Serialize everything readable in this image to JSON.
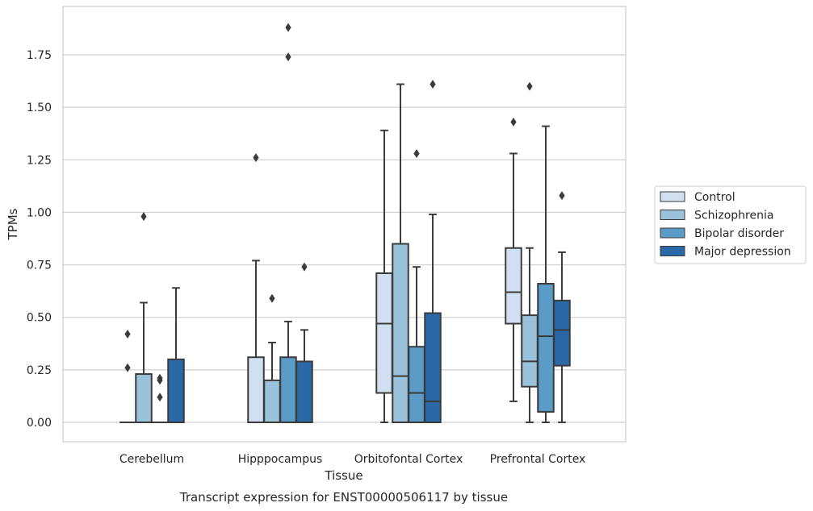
{
  "chart_data": {
    "type": "box",
    "xlabel": "Tissue",
    "ylabel": "TPMs",
    "caption": "Transcript expression for ENST00000506117 by tissue",
    "ylim": [
      -0.09,
      1.97
    ],
    "yticks": [
      "0.00",
      "0.25",
      "0.50",
      "0.75",
      "1.00",
      "1.25",
      "1.50",
      "1.75"
    ],
    "grid": "horizontal",
    "legend_position": "right",
    "categories": [
      "Cerebellum",
      "Hipppocampus",
      "Orbitofontal Cortex",
      "Prefrontal Cortex"
    ],
    "series": [
      {
        "name": "Control",
        "color": "#d0e0f0",
        "boxes": [
          {
            "q1": 0.0,
            "median": 0.0,
            "q3": 0.0,
            "whisker_low": 0.0,
            "whisker_high": 0.0,
            "outliers": [
              0.42,
              0.26
            ]
          },
          {
            "q1": 0.0,
            "median": 0.0,
            "q3": 0.31,
            "whisker_low": 0.0,
            "whisker_high": 0.77,
            "outliers": [
              1.26
            ]
          },
          {
            "q1": 0.14,
            "median": 0.47,
            "q3": 0.71,
            "whisker_low": 0.0,
            "whisker_high": 1.39,
            "outliers": []
          },
          {
            "q1": 0.47,
            "median": 0.62,
            "q3": 0.83,
            "whisker_low": 0.1,
            "whisker_high": 1.28,
            "outliers": [
              1.43
            ]
          }
        ]
      },
      {
        "name": "Schizophrenia",
        "color": "#9ac3db",
        "boxes": [
          {
            "q1": 0.0,
            "median": 0.0,
            "q3": 0.23,
            "whisker_low": 0.0,
            "whisker_high": 0.57,
            "outliers": [
              0.98
            ]
          },
          {
            "q1": 0.0,
            "median": 0.0,
            "q3": 0.2,
            "whisker_low": 0.0,
            "whisker_high": 0.38,
            "outliers": [
              0.59
            ]
          },
          {
            "q1": 0.0,
            "median": 0.22,
            "q3": 0.85,
            "whisker_low": 0.0,
            "whisker_high": 1.61,
            "outliers": []
          },
          {
            "q1": 0.17,
            "median": 0.29,
            "q3": 0.51,
            "whisker_low": 0.0,
            "whisker_high": 0.83,
            "outliers": [
              1.6
            ]
          }
        ]
      },
      {
        "name": "Bipolar disorder",
        "color": "#5b9bc8",
        "boxes": [
          {
            "q1": 0.0,
            "median": 0.0,
            "q3": 0.0,
            "whisker_low": 0.0,
            "whisker_high": 0.0,
            "outliers": [
              0.21,
              0.2,
              0.12
            ]
          },
          {
            "q1": 0.0,
            "median": 0.0,
            "q3": 0.31,
            "whisker_low": 0.0,
            "whisker_high": 0.48,
            "outliers": [
              1.74,
              1.88
            ]
          },
          {
            "q1": 0.0,
            "median": 0.14,
            "q3": 0.36,
            "whisker_low": 0.0,
            "whisker_high": 0.74,
            "outliers": [
              1.28
            ]
          },
          {
            "q1": 0.05,
            "median": 0.41,
            "q3": 0.66,
            "whisker_low": 0.0,
            "whisker_high": 1.41,
            "outliers": []
          }
        ]
      },
      {
        "name": "Major depression",
        "color": "#2a68a8",
        "boxes": [
          {
            "q1": 0.0,
            "median": 0.0,
            "q3": 0.3,
            "whisker_low": 0.0,
            "whisker_high": 0.64,
            "outliers": []
          },
          {
            "q1": 0.0,
            "median": 0.0,
            "q3": 0.29,
            "whisker_low": 0.0,
            "whisker_high": 0.44,
            "outliers": [
              0.74
            ]
          },
          {
            "q1": 0.0,
            "median": 0.1,
            "q3": 0.52,
            "whisker_low": 0.0,
            "whisker_high": 0.99,
            "outliers": [
              1.61
            ]
          },
          {
            "q1": 0.27,
            "median": 0.44,
            "q3": 0.58,
            "whisker_low": 0.0,
            "whisker_high": 0.81,
            "outliers": [
              1.08
            ]
          }
        ]
      }
    ]
  }
}
